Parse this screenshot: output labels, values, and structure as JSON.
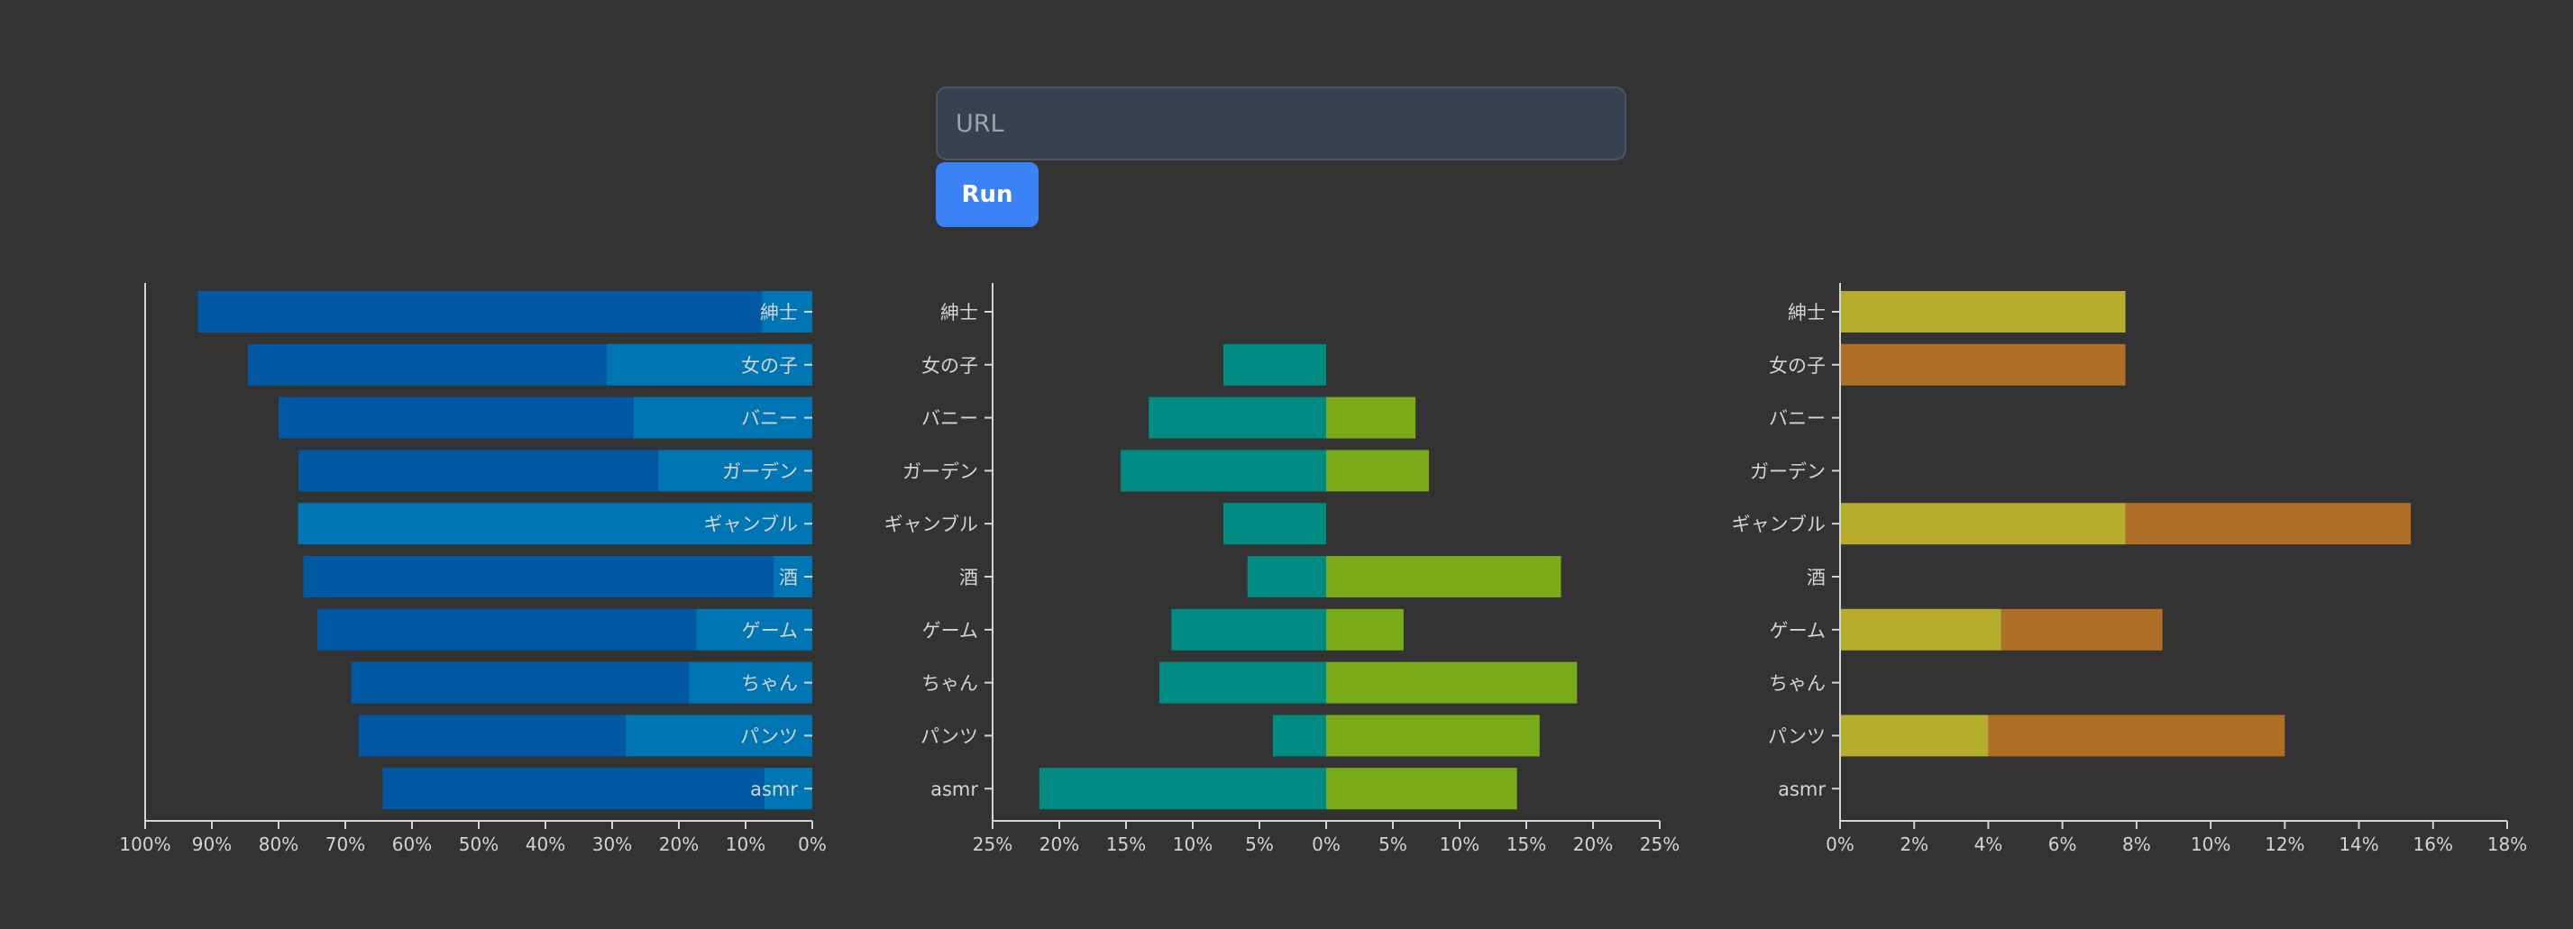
{
  "form": {
    "url_placeholder": "URL",
    "run_label": "Run"
  },
  "colors": {
    "axis": "#d4d4d4",
    "chart1_dark": "#0059a2",
    "chart1_light": "#0075b3",
    "chart2_left": "#008b83",
    "chart2_right": "#79aa1a",
    "chart3_first": "#b6ad2d",
    "chart3_second": "#b06f26"
  },
  "chart_data": [
    {
      "type": "bar",
      "categories": [
        "紳士",
        "女の子",
        "バニー",
        "ガーデン",
        "ギャンブル",
        "酒",
        "ゲーム",
        "ちゃん",
        "パンツ",
        "asmr"
      ],
      "orientation": "horizontal",
      "x_direction": "reversed",
      "xlim": [
        0,
        100
      ],
      "xticks": [
        "100%",
        "90%",
        "80%",
        "70%",
        "60%",
        "50%",
        "40%",
        "30%",
        "20%",
        "10%",
        "0%"
      ],
      "series": [
        {
          "values": [
            7.5,
            30.8,
            26.8,
            23.1,
            77.1,
            5.8,
            17.4,
            18.5,
            28,
            7.2
          ]
        },
        {
          "values": [
            84.6,
            53.8,
            53.2,
            53.9,
            0,
            70.5,
            56.8,
            50.6,
            40,
            57.2
          ]
        }
      ]
    },
    {
      "type": "bar",
      "categories": [
        "紳士",
        "女の子",
        "バニー",
        "ガーデン",
        "ギャンブル",
        "酒",
        "ゲーム",
        "ちゃん",
        "パンツ",
        "asmr"
      ],
      "orientation": "horizontal",
      "diverging": true,
      "xlim": [
        -25,
        25
      ],
      "xticks": [
        "25%",
        "20%",
        "15%",
        "10%",
        "5%",
        "0%",
        "5%",
        "10%",
        "15%",
        "20%",
        "25%"
      ],
      "series": [
        {
          "values": [
            0,
            7.7,
            13.3,
            15.4,
            7.7,
            5.9,
            11.6,
            12.5,
            4,
            21.5
          ]
        },
        {
          "values": [
            0,
            0,
            6.7,
            7.7,
            0,
            17.6,
            5.8,
            18.8,
            16,
            14.3
          ]
        }
      ]
    },
    {
      "type": "bar",
      "categories": [
        "紳士",
        "女の子",
        "バニー",
        "ガーデン",
        "ギャンブル",
        "酒",
        "ゲーム",
        "ちゃん",
        "パンツ",
        "asmr"
      ],
      "orientation": "horizontal",
      "stacked": true,
      "xlim": [
        0,
        18
      ],
      "xticks": [
        "0%",
        "2%",
        "4%",
        "6%",
        "8%",
        "10%",
        "12%",
        "14%",
        "16%",
        "18%"
      ],
      "series": [
        {
          "values": [
            7.7,
            0,
            0,
            0,
            7.7,
            0,
            4.35,
            0,
            4,
            0
          ]
        },
        {
          "values": [
            0,
            7.7,
            0,
            0,
            7.7,
            0,
            4.35,
            0,
            8,
            0
          ]
        }
      ]
    }
  ]
}
